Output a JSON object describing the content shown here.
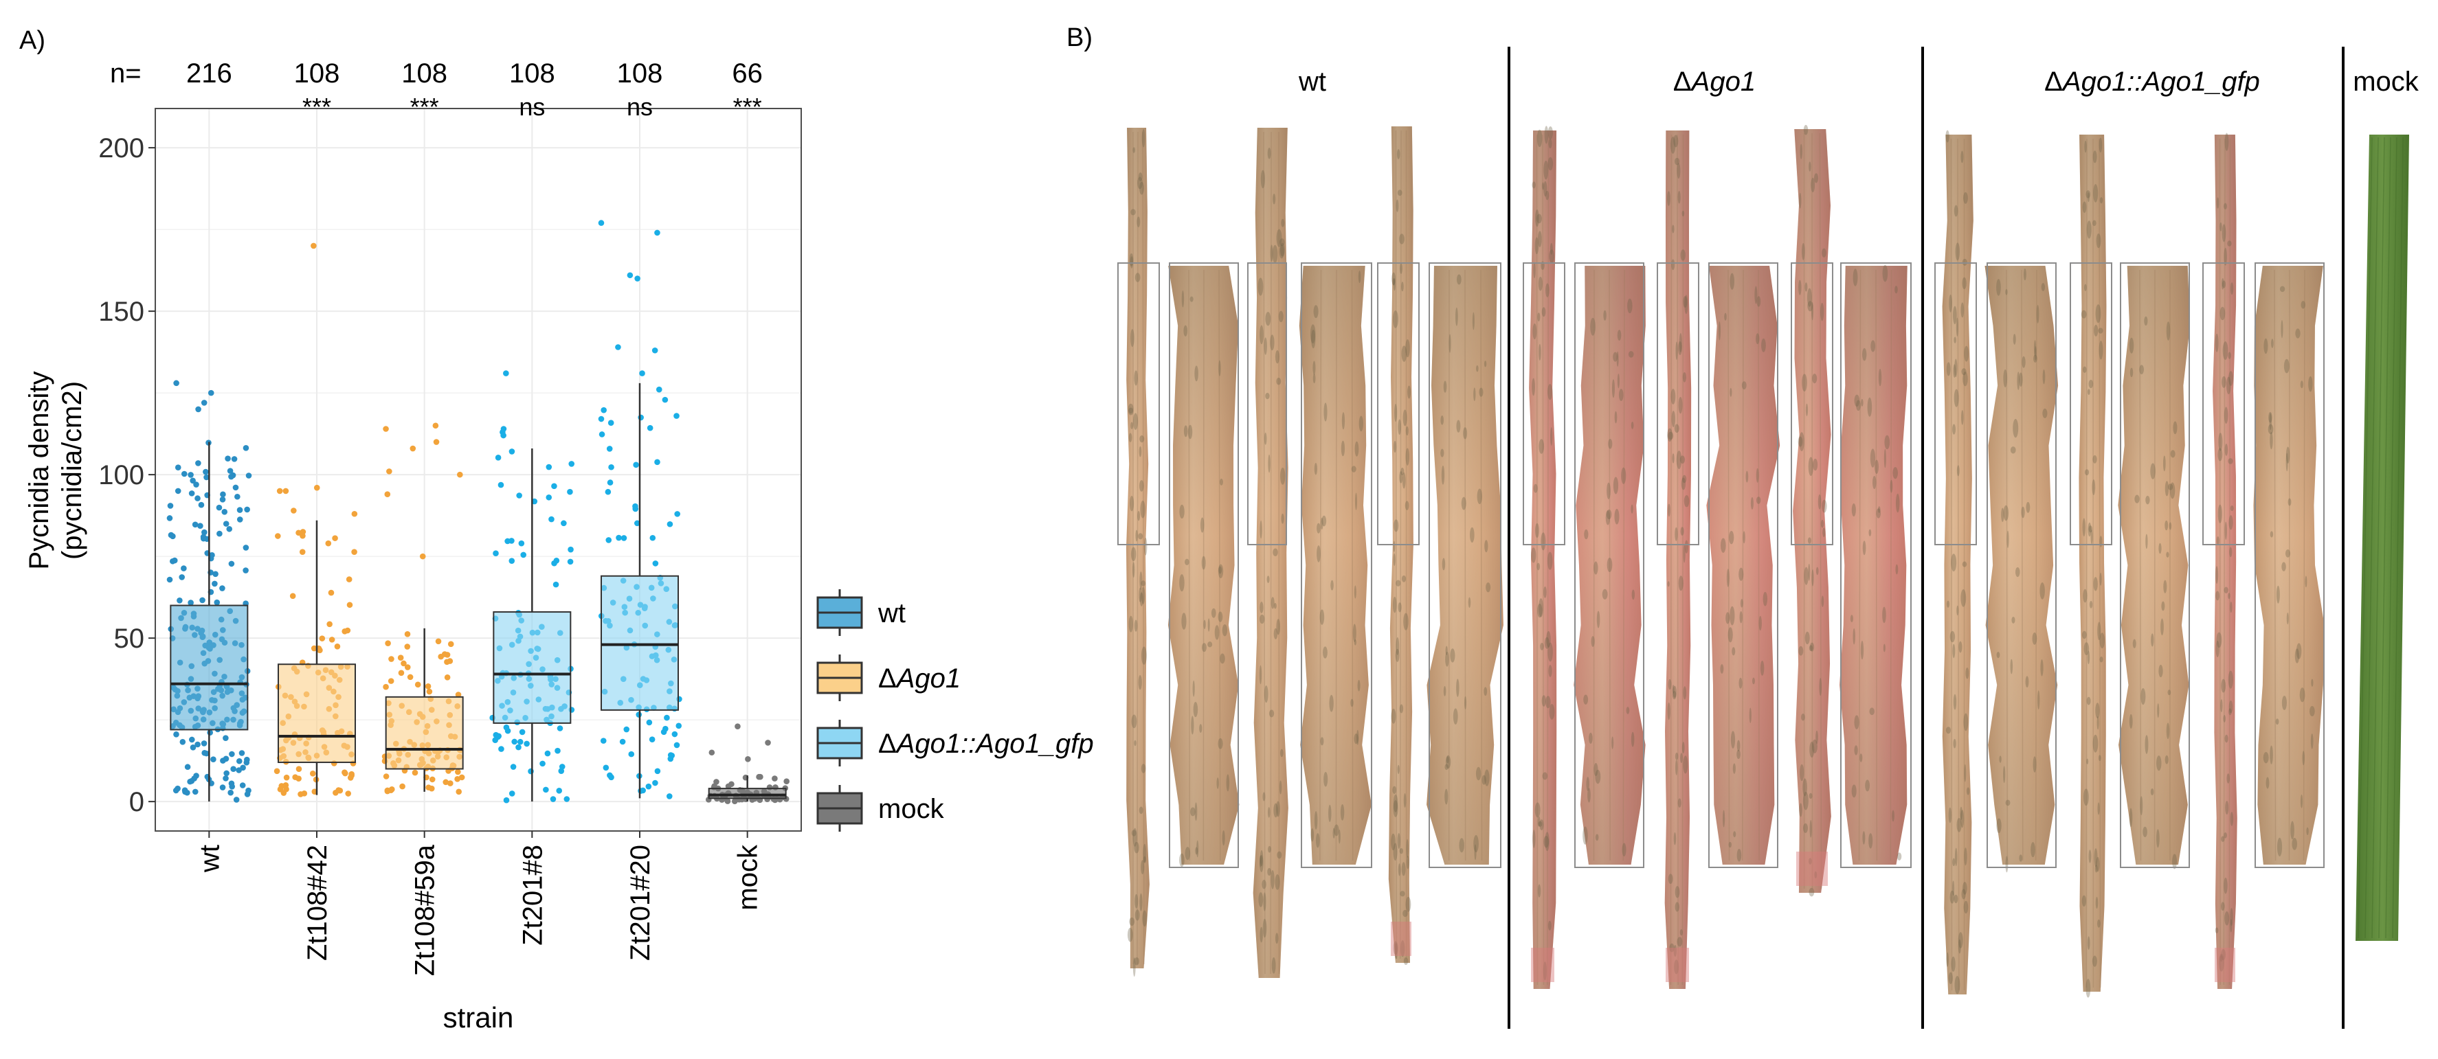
{
  "panel_a": {
    "label": "A)",
    "n_prefix": "n=",
    "n_counts": [
      "216",
      "108",
      "108",
      "108",
      "108",
      "66"
    ],
    "significance": [
      "",
      "***",
      "***",
      "ns",
      "ns",
      "***"
    ]
  },
  "chart_data": {
    "type": "boxplot",
    "xlabel": "strain",
    "ylabel_line1": "Pycnidia density",
    "ylabel_line2": "(pycnidia/cm2)",
    "ylim": [
      -9,
      212
    ],
    "yticks": [
      0,
      50,
      100,
      150,
      200
    ],
    "categories": [
      "wt",
      "Zt108#42",
      "Zt108#59a",
      "Zt201#8",
      "Zt201#20",
      "mock"
    ],
    "groups": [
      "wt",
      "dAgo1",
      "dAgo1",
      "comp",
      "comp",
      "mock"
    ],
    "boxes": [
      {
        "q1": 22,
        "median": 36,
        "q3": 60,
        "whisker_low": 0,
        "whisker_high": 110
      },
      {
        "q1": 12,
        "median": 20,
        "q3": 42,
        "whisker_low": 2,
        "whisker_high": 86
      },
      {
        "q1": 10,
        "median": 16,
        "q3": 32,
        "whisker_low": 3,
        "whisker_high": 53
      },
      {
        "q1": 24,
        "median": 39,
        "q3": 58,
        "whisker_low": 0,
        "whisker_high": 108
      },
      {
        "q1": 28,
        "median": 48,
        "q3": 69,
        "whisker_low": 1,
        "whisker_high": 128
      },
      {
        "q1": 1,
        "median": 2,
        "q3": 4,
        "whisker_low": 0,
        "whisker_high": 8
      }
    ],
    "outliers": [
      [
        128,
        125,
        122,
        120
      ],
      [
        170,
        96,
        95,
        95,
        89,
        88
      ],
      [
        115,
        114,
        110,
        108,
        101,
        100,
        94,
        75
      ],
      [
        131,
        114,
        113,
        112
      ],
      [
        177,
        174,
        161,
        160,
        139,
        138,
        131
      ],
      [
        23,
        18,
        15,
        13
      ]
    ],
    "legend": {
      "position": "right",
      "entries": [
        {
          "key": "wt",
          "label": "wt",
          "color": "#2b8ec4",
          "fill": "#5aafd9"
        },
        {
          "key": "dAgo1",
          "label_prefix": "Δ",
          "label_italic": "Ago1",
          "color": "#f2a33a",
          "fill": "#fbd08a"
        },
        {
          "key": "comp",
          "label_prefix": "Δ",
          "label_italic": "Ago1::Ago1_gfp",
          "color": "#1aaee6",
          "fill": "#8ed6f3"
        },
        {
          "key": "mock",
          "label": "mock",
          "color": "#7a7a7a",
          "fill": "#7a7a7a"
        }
      ]
    }
  },
  "panel_b": {
    "label": "B)",
    "sections": [
      {
        "name": "wt",
        "prefix": "",
        "italic": ""
      },
      {
        "name": "",
        "prefix": "Δ",
        "italic": "Ago1"
      },
      {
        "name": "",
        "prefix": "Δ",
        "italic": "Ago1::Ago1_gfp"
      },
      {
        "name": "mock",
        "prefix": "",
        "italic": ""
      }
    ],
    "colors": {
      "leaf_tan": "#ddb18a",
      "leaf_tan_light": "#e8c6a2",
      "leaf_dark": "#8a7a5e",
      "leaf_red": "#d9857d",
      "leaf_green": "#5f8a3a",
      "leaf_green_dark": "#3f6a26",
      "frame": "#8c8c8c"
    }
  }
}
